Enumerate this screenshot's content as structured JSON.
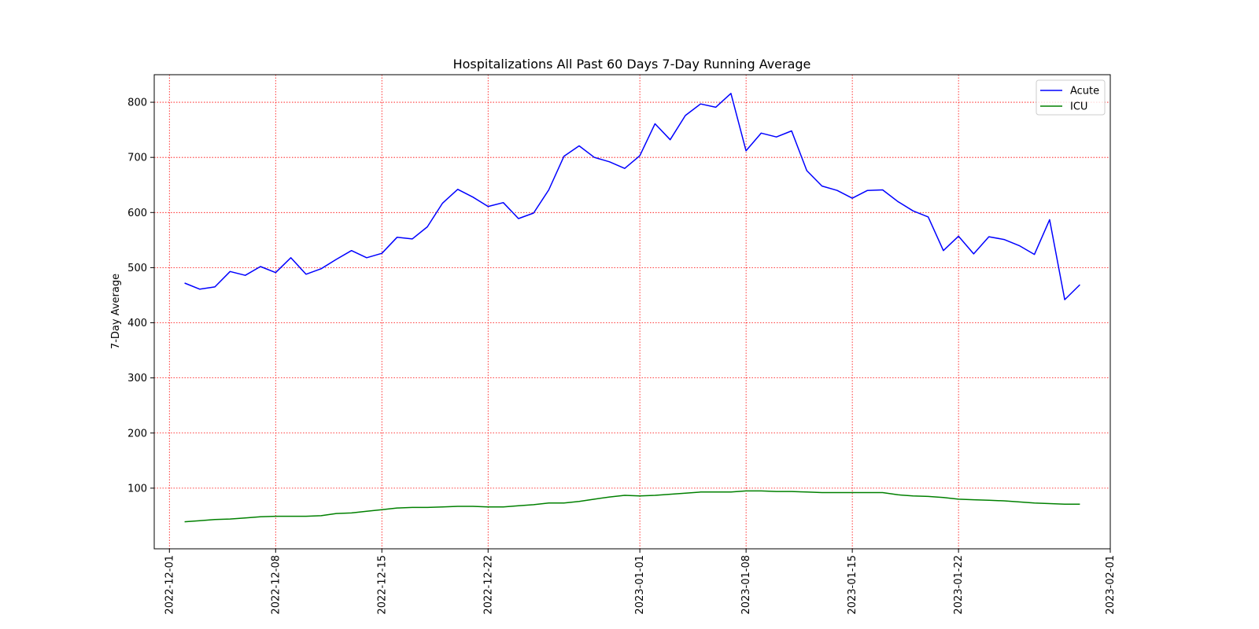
{
  "chart_data": {
    "type": "line",
    "title": "Hospitalizations All Past 60 Days 7-Day Running Average",
    "xlabel": "",
    "ylabel": "7-Day Average",
    "x_type": "date",
    "xlim": [
      "2022-11-30",
      "2023-02-01"
    ],
    "ylim": [
      -10,
      850
    ],
    "x_ticks": [
      "2022-12-01",
      "2022-12-08",
      "2022-12-15",
      "2022-12-22",
      "2023-01-01",
      "2023-01-08",
      "2023-01-15",
      "2023-01-22",
      "2023-02-01"
    ],
    "y_ticks": [
      100,
      200,
      300,
      400,
      500,
      600,
      700,
      800
    ],
    "grid": true,
    "grid_color": "#ff0000",
    "legend_position": "top-right",
    "x": [
      "2022-12-02",
      "2022-12-03",
      "2022-12-04",
      "2022-12-05",
      "2022-12-06",
      "2022-12-07",
      "2022-12-08",
      "2022-12-09",
      "2022-12-10",
      "2022-12-11",
      "2022-12-12",
      "2022-12-13",
      "2022-12-14",
      "2022-12-15",
      "2022-12-16",
      "2022-12-17",
      "2022-12-18",
      "2022-12-19",
      "2022-12-20",
      "2022-12-21",
      "2022-12-22",
      "2022-12-23",
      "2022-12-24",
      "2022-12-25",
      "2022-12-26",
      "2022-12-27",
      "2022-12-28",
      "2022-12-29",
      "2022-12-30",
      "2022-12-31",
      "2023-01-01",
      "2023-01-02",
      "2023-01-03",
      "2023-01-04",
      "2023-01-05",
      "2023-01-06",
      "2023-01-07",
      "2023-01-08",
      "2023-01-09",
      "2023-01-10",
      "2023-01-11",
      "2023-01-12",
      "2023-01-13",
      "2023-01-14",
      "2023-01-15",
      "2023-01-16",
      "2023-01-17",
      "2023-01-18",
      "2023-01-19",
      "2023-01-20",
      "2023-01-21",
      "2023-01-22",
      "2023-01-23",
      "2023-01-24",
      "2023-01-25",
      "2023-01-26",
      "2023-01-27",
      "2023-01-28",
      "2023-01-29",
      "2023-01-30"
    ],
    "series": [
      {
        "name": "Acute",
        "color": "#0000ff",
        "values": [
          472,
          461,
          465,
          493,
          486,
          502,
          491,
          518,
          488,
          498,
          515,
          531,
          518,
          526,
          555,
          552,
          574,
          617,
          642,
          628,
          611,
          618,
          589,
          599,
          641,
          702,
          721,
          700,
          692,
          680,
          703,
          761,
          732,
          776,
          797,
          791,
          816,
          712,
          744,
          737,
          748,
          676,
          648,
          640,
          626,
          640,
          641,
          620,
          603,
          592,
          531,
          557,
          525,
          556,
          551,
          540,
          524,
          587,
          442,
          469
        ]
      },
      {
        "name": "ICU",
        "color": "#008000",
        "values": [
          39,
          41,
          43,
          44,
          46,
          48,
          49,
          49,
          49,
          50,
          54,
          55,
          58,
          61,
          64,
          65,
          65,
          66,
          67,
          67,
          66,
          66,
          68,
          70,
          73,
          73,
          76,
          80,
          84,
          87,
          86,
          87,
          89,
          91,
          93,
          93,
          93,
          95,
          95,
          94,
          94,
          93,
          92,
          92,
          92,
          92,
          92,
          88,
          86,
          85,
          83,
          80,
          79,
          78,
          77,
          75,
          73,
          72,
          71,
          71
        ]
      }
    ]
  }
}
